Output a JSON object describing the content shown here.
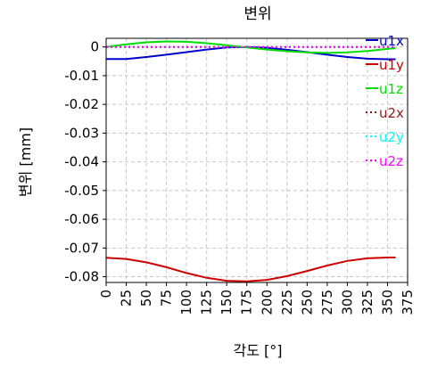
{
  "chart_data": {
    "type": "line",
    "title": "변위",
    "xlabel": "각도 [°]",
    "ylabel": "변위 [mm]",
    "xlim": [
      0,
      375
    ],
    "ylim": [
      -0.082,
      0.003
    ],
    "xticks": [
      0,
      25,
      50,
      75,
      100,
      125,
      150,
      175,
      200,
      225,
      250,
      275,
      300,
      325,
      350,
      375
    ],
    "xtick_labels": [
      "0",
      "25",
      "50",
      "75",
      "100",
      "125",
      "150",
      "175",
      "200",
      "225",
      "250",
      "275",
      "300",
      "325",
      "350",
      "375"
    ],
    "yticks": [
      0,
      -0.01,
      -0.02,
      -0.03,
      -0.04,
      -0.05,
      -0.06,
      -0.07,
      -0.08
    ],
    "ytick_labels": [
      "0",
      "-0.01",
      "-0.02",
      "-0.03",
      "-0.04",
      "-0.05",
      "-0.06",
      "-0.07",
      "-0.08"
    ],
    "grid": true,
    "legend_position": "top-right",
    "x": [
      0,
      25,
      50,
      75,
      100,
      125,
      150,
      175,
      200,
      225,
      250,
      275,
      300,
      325,
      350,
      360
    ],
    "series": [
      {
        "name": "u1x",
        "color": "#0000cc",
        "style": "solid",
        "values": [
          -0.0042,
          -0.0042,
          -0.0035,
          -0.0027,
          -0.0018,
          -0.0009,
          -0.0002,
          0.0,
          -0.0003,
          -0.001,
          -0.0018,
          -0.0027,
          -0.0035,
          -0.0041,
          -0.0043,
          -0.0043
        ]
      },
      {
        "name": "u1y",
        "color": "#cc0000",
        "style": "solid",
        "values": [
          -0.0734,
          -0.0738,
          -0.075,
          -0.0767,
          -0.0787,
          -0.0804,
          -0.0814,
          -0.0816,
          -0.0811,
          -0.0798,
          -0.078,
          -0.0761,
          -0.0745,
          -0.0736,
          -0.0733,
          -0.0733
        ]
      },
      {
        "name": "u1z",
        "color": "#00dd00",
        "style": "solid",
        "values": [
          0.0,
          0.0009,
          0.0016,
          0.0019,
          0.0018,
          0.0013,
          0.0006,
          -0.0002,
          -0.0009,
          -0.0015,
          -0.0019,
          -0.0021,
          -0.0019,
          -0.0014,
          -0.0007,
          -0.0004
        ]
      },
      {
        "name": "u2x",
        "color": "#8b1a1a",
        "style": "dotted",
        "values": [
          0,
          0,
          0,
          0,
          0,
          0,
          0,
          0,
          0,
          0,
          0,
          0,
          0,
          0,
          0,
          0
        ]
      },
      {
        "name": "u2y",
        "color": "#00ffff",
        "style": "dotted",
        "values": [
          0,
          0,
          0,
          0,
          0,
          0,
          0,
          0,
          0,
          0,
          0,
          0,
          0,
          0,
          0,
          0
        ]
      },
      {
        "name": "u2z",
        "color": "#ff00ff",
        "style": "dotted",
        "values": [
          0,
          0,
          0,
          0,
          0,
          0,
          0,
          0,
          0,
          0,
          0,
          0,
          0,
          0,
          0,
          0
        ]
      }
    ]
  }
}
